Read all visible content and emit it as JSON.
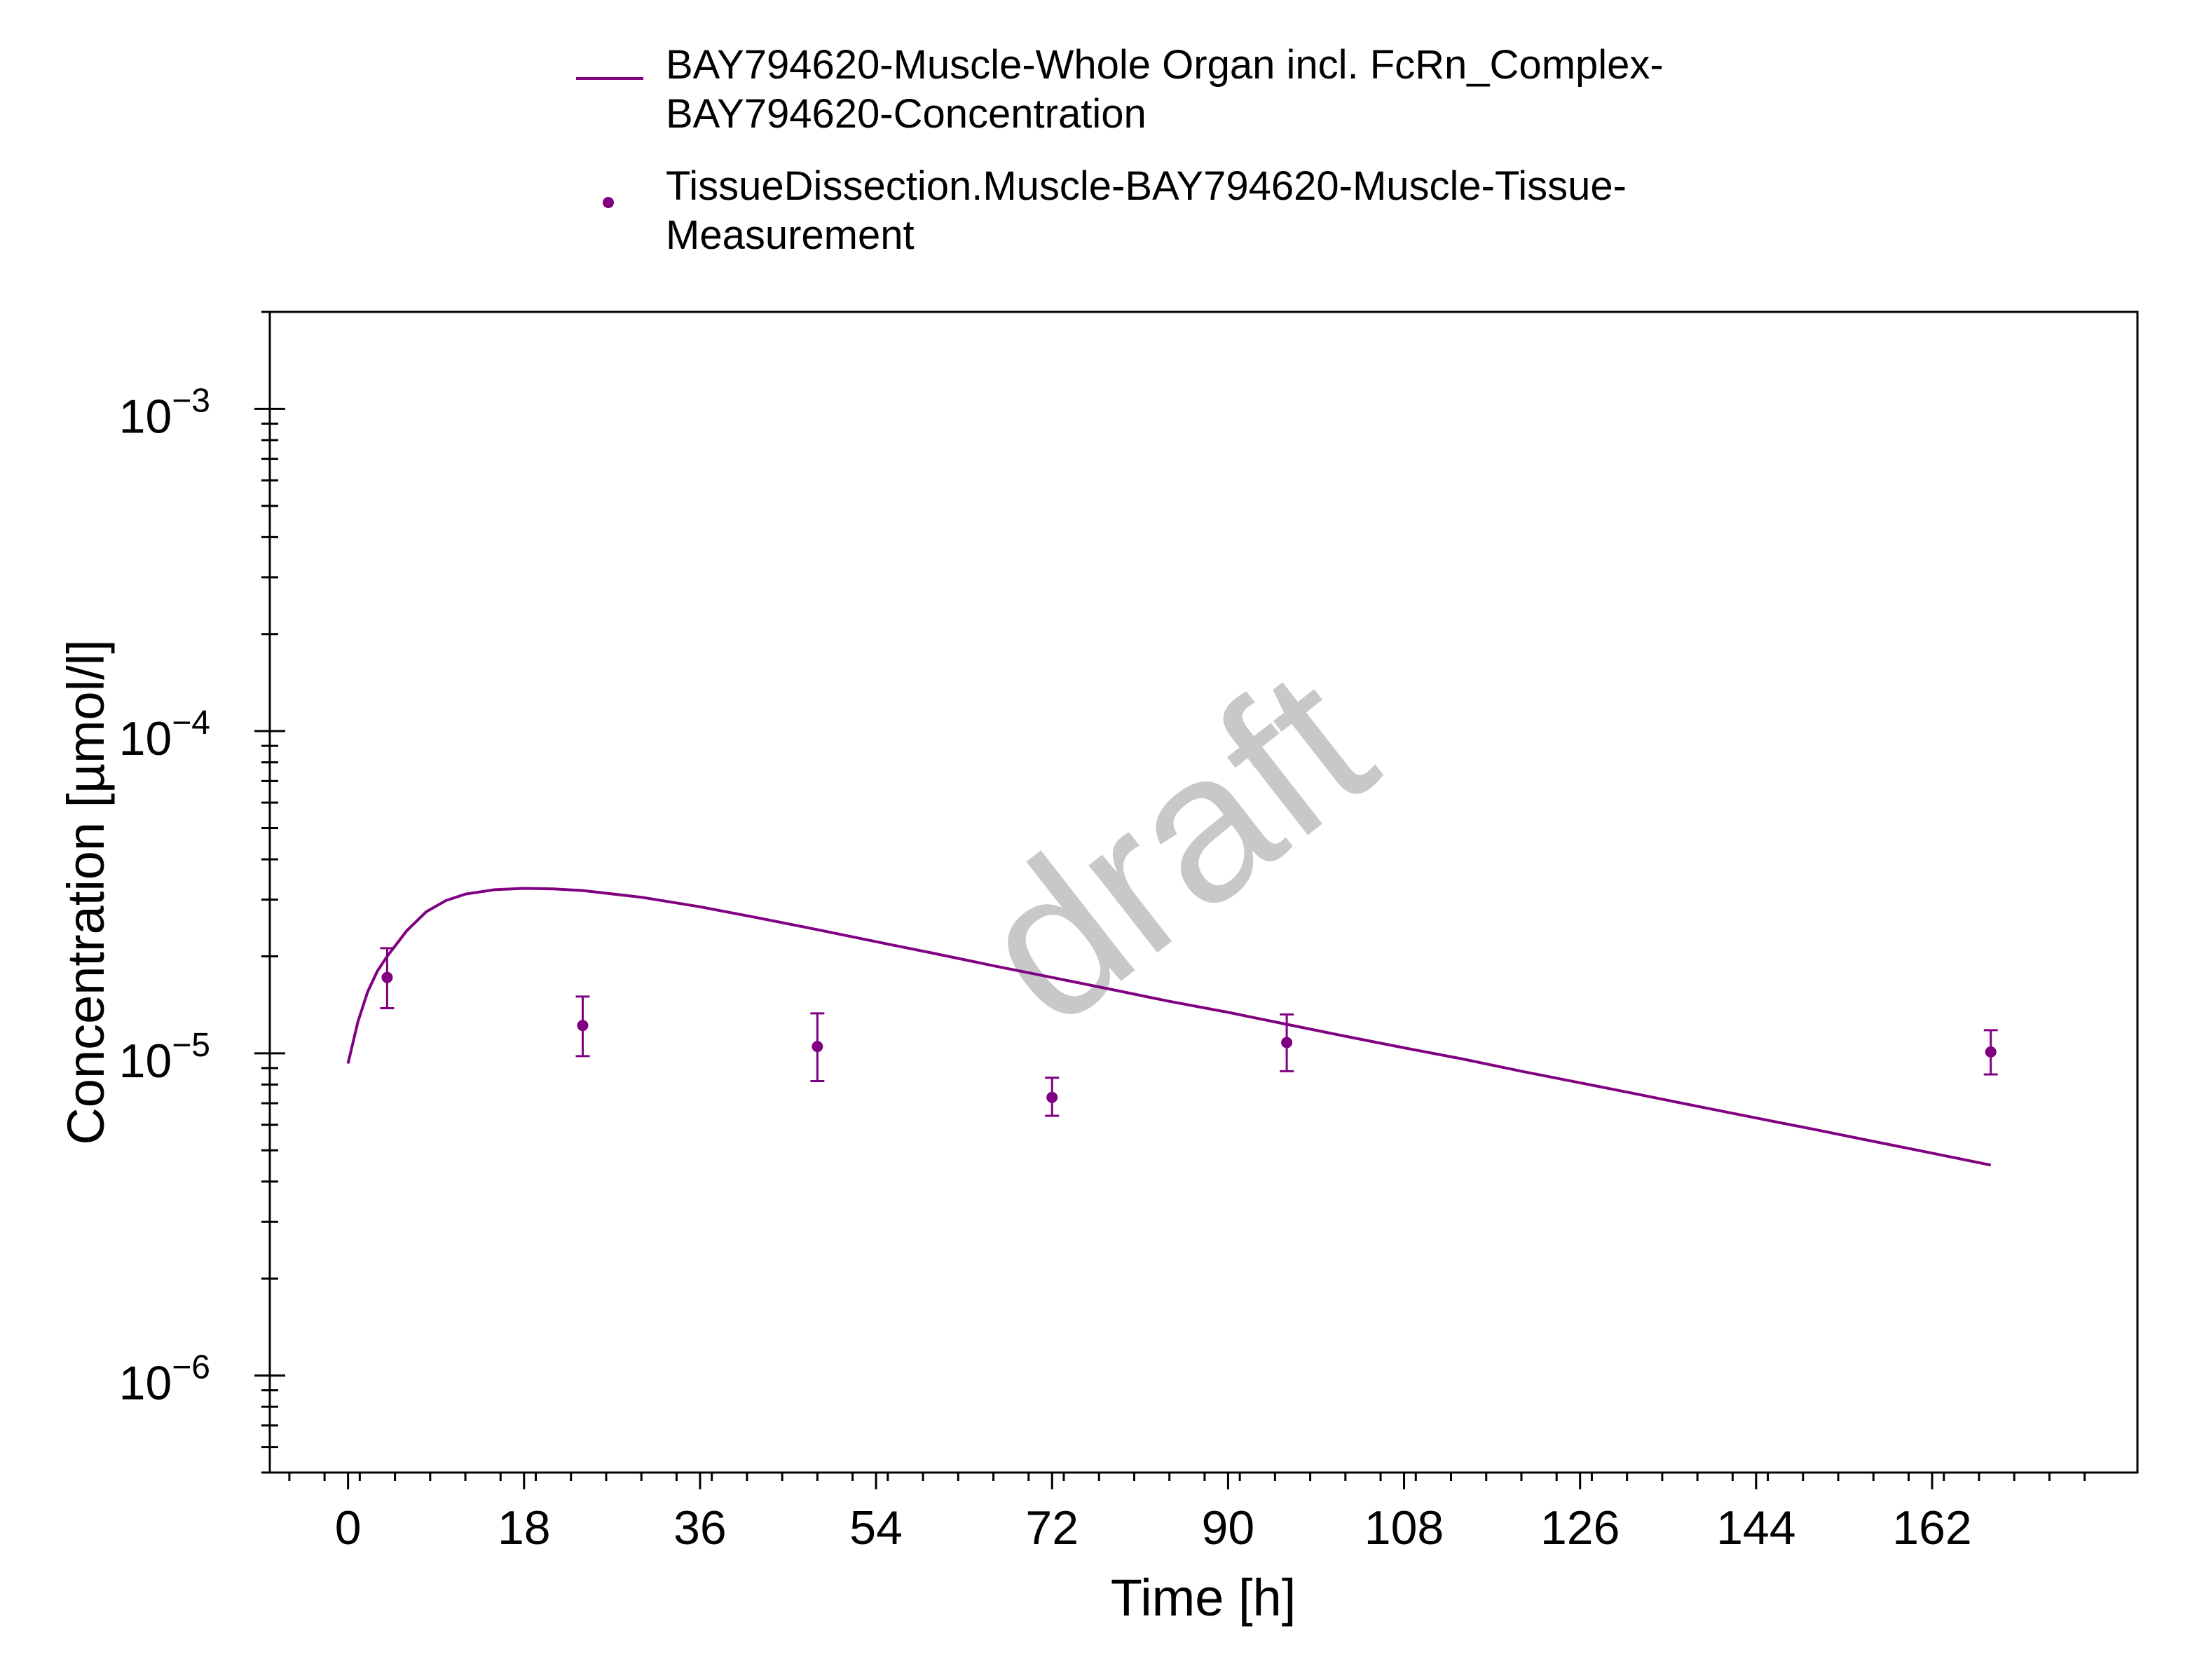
{
  "chart_data": {
    "type": "line",
    "xlabel": "Time [h]",
    "ylabel": "Concentration [µmol/l]",
    "xlim": [
      -8,
      183
    ],
    "ylim": [
      5e-07,
      0.002
    ],
    "y_scale": "log",
    "grid": false,
    "legend_position": "top",
    "watermark": "draft",
    "x_ticks": [
      0,
      18,
      36,
      54,
      72,
      90,
      108,
      126,
      144,
      162
    ],
    "y_ticks": [
      {
        "value": 1e-06,
        "base": "10",
        "exponent": "−6"
      },
      {
        "value": 1e-05,
        "base": "10",
        "exponent": "−5"
      },
      {
        "value": 0.0001,
        "base": "10",
        "exponent": "−4"
      },
      {
        "value": 0.001,
        "base": "10",
        "exponent": "−3"
      }
    ],
    "series": [
      {
        "name": "BAY794620-Muscle-Whole Organ incl. FcRn_Complex-BAY794620-Concentration",
        "legend_lines": [
          "BAY794620-Muscle-Whole Organ incl. FcRn_Complex-",
          "BAY794620-Concentration"
        ],
        "kind": "line",
        "color": "#800080",
        "x": [
          0,
          1,
          2,
          3,
          4,
          6,
          8,
          10,
          12,
          15,
          18,
          21,
          24,
          30,
          36,
          42,
          48,
          54,
          60,
          66,
          72,
          78,
          84,
          90,
          96,
          102,
          108,
          114,
          120,
          126,
          132,
          138,
          144,
          150,
          156,
          162,
          168
        ],
        "y": [
          9.3e-06,
          1.25e-05,
          1.55e-05,
          1.8e-05,
          2e-05,
          2.4e-05,
          2.75e-05,
          2.98e-05,
          3.12e-05,
          3.22e-05,
          3.25e-05,
          3.24e-05,
          3.2e-05,
          3.05e-05,
          2.85e-05,
          2.63e-05,
          2.42e-05,
          2.22e-05,
          2.04e-05,
          1.87e-05,
          1.72e-05,
          1.58e-05,
          1.45e-05,
          1.34e-05,
          1.23e-05,
          1.13e-05,
          1.04e-05,
          9.6e-06,
          8.8e-06,
          8.1e-06,
          7.45e-06,
          6.85e-06,
          6.3e-06,
          5.8e-06,
          5.33e-06,
          4.9e-06,
          4.5e-06
        ]
      },
      {
        "name": "TissueDissection.Muscle-BAY794620-Muscle-Tissue-Measurement",
        "legend_lines": [
          "TissueDissection.Muscle-BAY794620-Muscle-Tissue-",
          "Measurement"
        ],
        "kind": "scatter",
        "color": "#800080",
        "points": [
          {
            "x": 4,
            "y": 1.72e-05,
            "ylow": 1.38e-05,
            "yhigh": 2.12e-05
          },
          {
            "x": 24,
            "y": 1.22e-05,
            "ylow": 9.8e-06,
            "yhigh": 1.5e-05
          },
          {
            "x": 48,
            "y": 1.05e-05,
            "ylow": 8.2e-06,
            "yhigh": 1.33e-05
          },
          {
            "x": 72,
            "y": 7.3e-06,
            "ylow": 6.4e-06,
            "yhigh": 8.4e-06
          },
          {
            "x": 96,
            "y": 1.08e-05,
            "ylow": 8.8e-06,
            "yhigh": 1.32e-05
          },
          {
            "x": 168,
            "y": 1.01e-05,
            "ylow": 8.6e-06,
            "yhigh": 1.18e-05
          }
        ]
      }
    ]
  }
}
